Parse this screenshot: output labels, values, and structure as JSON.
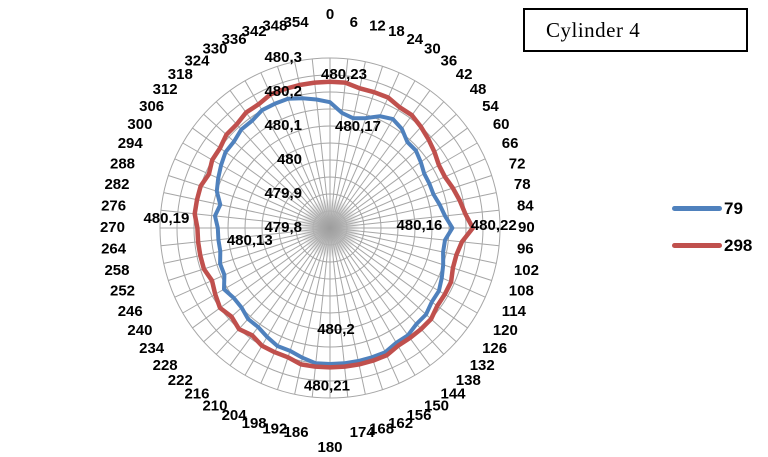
{
  "title_box": {
    "text": "Cylinder 4"
  },
  "legend": {
    "items": [
      {
        "label": "79",
        "color": "#4F81BD"
      },
      {
        "label": "298",
        "color": "#C0504D"
      }
    ]
  },
  "chart_data": {
    "type": "radar",
    "title": "Cylinder 4",
    "angle_step_deg": 6,
    "decimal_separator": ",",
    "grid_color": "#A6A6A6",
    "categories": [
      "0",
      "6",
      "12",
      "18",
      "24",
      "30",
      "36",
      "42",
      "48",
      "54",
      "60",
      "66",
      "72",
      "78",
      "84",
      "90",
      "96",
      "102",
      "108",
      "114",
      "120",
      "126",
      "132",
      "138",
      "144",
      "150",
      "156",
      "162",
      "168",
      "174",
      "180",
      "186",
      "192",
      "198",
      "204",
      "210",
      "216",
      "222",
      "228",
      "234",
      "240",
      "246",
      "252",
      "258",
      "264",
      "270",
      "276",
      "282",
      "288",
      "294",
      "300",
      "306",
      "312",
      "318",
      "324",
      "330",
      "336",
      "342",
      "348",
      "354"
    ],
    "r_axis": {
      "min": 479.8,
      "max": 480.3,
      "major_unit": 0.1,
      "minor_unit": 0.05,
      "tick_labels": [
        {
          "value": 479.8,
          "label": "479,8"
        },
        {
          "value": 479.9,
          "label": "479,9"
        },
        {
          "value": 480.0,
          "label": "480"
        },
        {
          "value": 480.1,
          "label": "480,1"
        },
        {
          "value": 480.2,
          "label": "480,2"
        },
        {
          "value": 480.3,
          "label": "480,3"
        }
      ]
    },
    "series": [
      {
        "name": "79",
        "color": "#4F81BD",
        "values": [
          480.17,
          480.14,
          480.13,
          480.14,
          480.16,
          480.17,
          480.16,
          480.14,
          480.14,
          480.13,
          480.12,
          480.12,
          480.12,
          480.13,
          480.14,
          480.16,
          480.14,
          480.14,
          480.15,
          480.16,
          480.17,
          480.17,
          480.18,
          480.18,
          480.19,
          480.19,
          480.2,
          480.2,
          480.2,
          480.2,
          480.2,
          480.2,
          480.19,
          480.18,
          480.18,
          480.17,
          480.16,
          480.16,
          480.15,
          480.15,
          480.16,
          480.14,
          480.14,
          480.13,
          480.13,
          480.13,
          480.14,
          480.13,
          480.15,
          480.16,
          480.17,
          480.18,
          480.18,
          480.19,
          480.19,
          480.2,
          480.2,
          480.2,
          480.19,
          480.18
        ]
      },
      {
        "name": "298",
        "color": "#C0504D",
        "values": [
          480.23,
          480.23,
          480.22,
          480.22,
          480.22,
          480.21,
          480.21,
          480.2,
          480.19,
          480.18,
          480.17,
          480.17,
          480.18,
          480.19,
          480.2,
          480.22,
          480.19,
          480.18,
          480.18,
          480.19,
          480.19,
          480.19,
          480.2,
          480.2,
          480.2,
          480.2,
          480.21,
          480.21,
          480.21,
          480.21,
          480.21,
          480.21,
          480.21,
          480.2,
          480.2,
          480.2,
          480.19,
          480.2,
          480.19,
          480.2,
          480.19,
          480.18,
          480.19,
          480.19,
          480.19,
          480.19,
          480.2,
          480.2,
          480.2,
          480.19,
          480.2,
          480.2,
          480.21,
          480.21,
          480.22,
          480.22,
          480.23,
          480.23,
          480.23,
          480.23
        ]
      }
    ],
    "data_labels": [
      {
        "series": "79",
        "angle": 0,
        "text": "480,17"
      },
      {
        "series": "79",
        "angle": 90,
        "text": "480,16"
      },
      {
        "series": "79",
        "angle": 180,
        "text": "480,2"
      },
      {
        "series": "79",
        "angle": 270,
        "text": "480,13"
      },
      {
        "series": "298",
        "angle": 0,
        "text": "480,23"
      },
      {
        "series": "298",
        "angle": 90,
        "text": "480,22"
      },
      {
        "series": "298",
        "angle": 180,
        "text": "480,21"
      },
      {
        "series": "298",
        "angle": 270,
        "text": "480,19"
      }
    ]
  }
}
